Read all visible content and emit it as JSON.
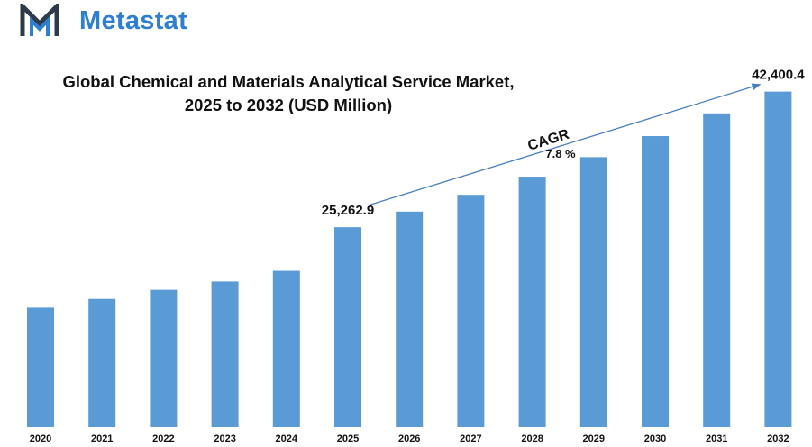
{
  "brand": {
    "name": "Metastat",
    "color": "#2f7fd0",
    "icon": "metastat-logo-icon"
  },
  "chart_data": {
    "type": "bar",
    "title": "Global Chemical and Materials Analytical Service Market,",
    "subtitle": "2025 to 2032 (USD Million)",
    "categories": [
      "2020",
      "2021",
      "2022",
      "2023",
      "2024",
      "2025",
      "2026",
      "2027",
      "2028",
      "2029",
      "2030",
      "2031",
      "2032"
    ],
    "values": [
      15100,
      16200,
      17350,
      18400,
      19750,
      25262.9,
      27233,
      29357,
      31647,
      34115,
      36776,
      39645,
      42400.4
    ],
    "data_labels": {
      "2025": "25,262.9",
      "2032": "42,400.4"
    },
    "annotation": {
      "label": "CAGR",
      "value": "7.8 %"
    },
    "ylim": [
      0,
      46000
    ],
    "grid": false,
    "bar_color": "#5b9bd5",
    "arrow_color": "#4a7fbf"
  }
}
